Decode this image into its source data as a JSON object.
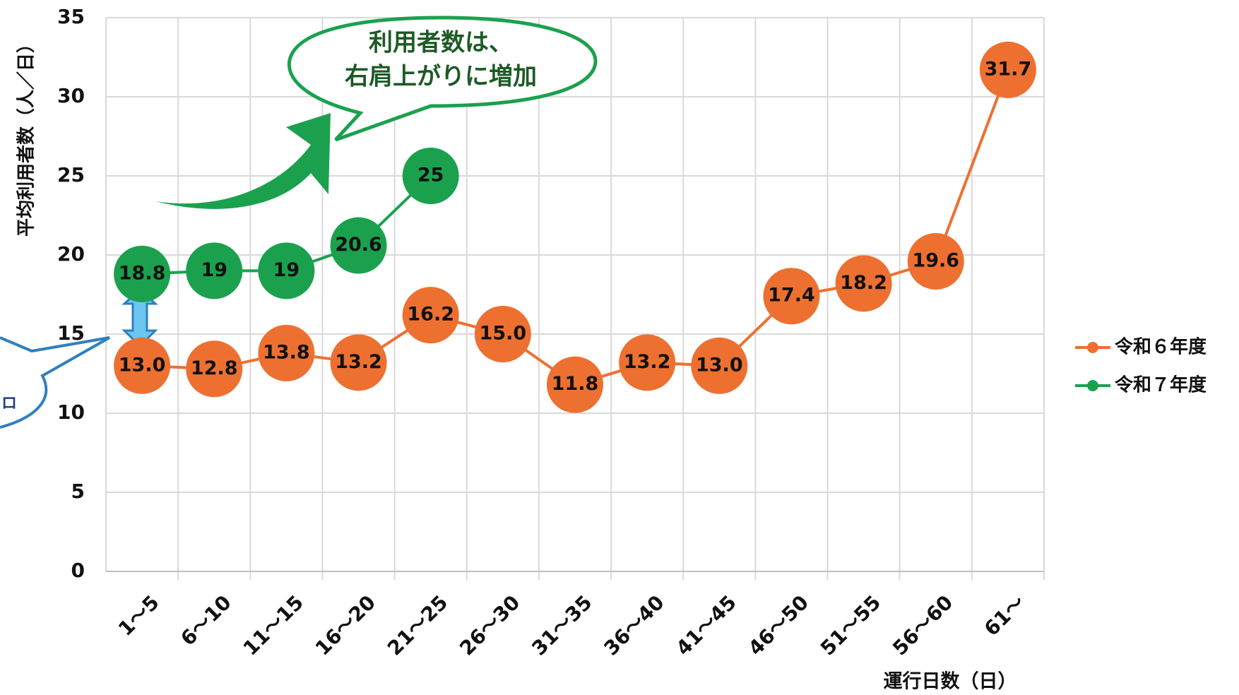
{
  "chart_data": {
    "type": "line",
    "y_label": "平均利用者数（人／日）",
    "x_label": "運行日数（日）",
    "categories": [
      "1～5",
      "6～10",
      "11～15",
      "16～20",
      "21～25",
      "26～30",
      "31～35",
      "36～40",
      "41～45",
      "46～50",
      "51～55",
      "56～60",
      "61～"
    ],
    "series": [
      {
        "name": "令和６年度",
        "color": "#ED7031",
        "values": [
          13.0,
          12.8,
          13.8,
          13.2,
          16.2,
          15.0,
          11.8,
          13.2,
          13.0,
          17.4,
          18.2,
          19.6,
          31.7
        ],
        "value_labels": [
          "13.0",
          "12.8",
          "13.8",
          "13.2",
          "16.2",
          "15.0",
          "11.8",
          "13.2",
          "13.0",
          "17.4",
          "18.2",
          "19.6",
          "31.7"
        ]
      },
      {
        "name": "令和７年度",
        "color": "#1BA14E",
        "values": [
          18.8,
          19,
          19,
          20.6,
          25,
          null,
          null,
          null,
          null,
          null,
          null,
          null,
          null
        ]
      }
    ],
    "ylim": [
      0,
      35
    ],
    "yticks": [
      0,
      5,
      10,
      15,
      20,
      25,
      30,
      35
    ],
    "grid": true,
    "legend": "right",
    "annotation": [
      "利用者数は、",
      "右肩上がりに増加"
    ],
    "left_callout": "ロ"
  }
}
